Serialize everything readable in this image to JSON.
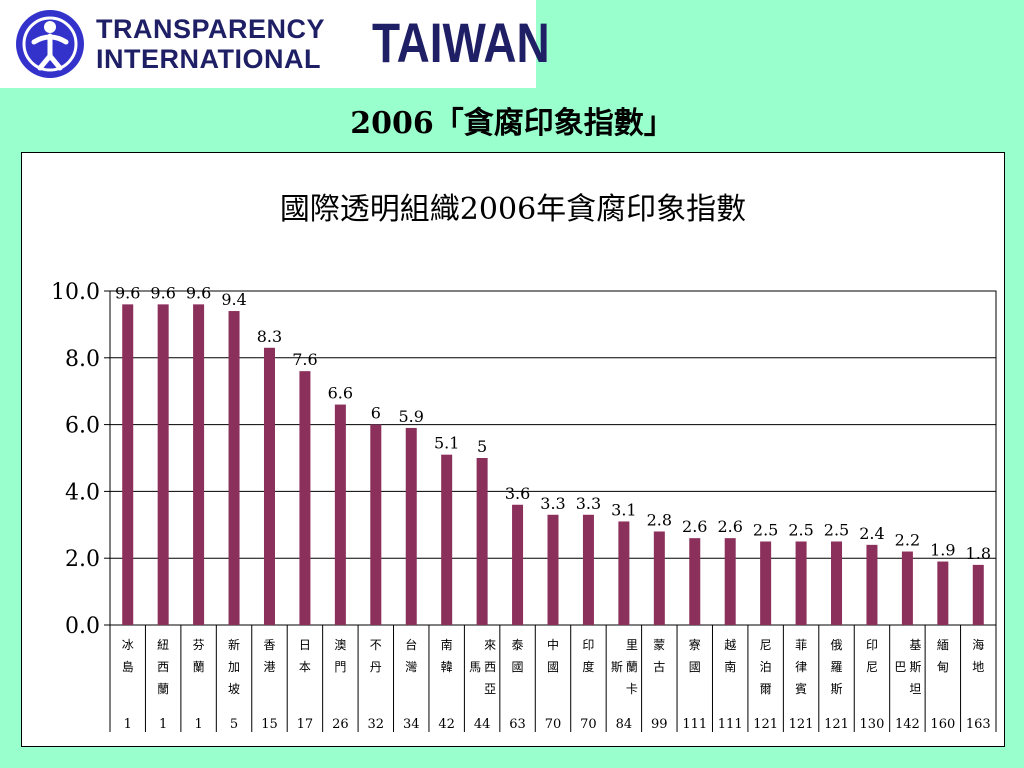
{
  "logo": {
    "line1": "TRANSPARENCY",
    "line2": "INTERNATIONAL",
    "country": "TAIWAN",
    "icon": "globe-figure-icon"
  },
  "slide_title": "2006「貪腐印象指數」",
  "colors": {
    "background": "#99ffcc",
    "bar": "#8b2f5b",
    "logo_text": "#1f1f66",
    "logo_icon": "#3333cc"
  },
  "chart_data": {
    "type": "bar",
    "title": "國際透明組織2006年貪腐印象指數",
    "ylim": [
      0,
      10
    ],
    "yticks": [
      "0.0",
      "2.0",
      "4.0",
      "6.0",
      "8.0",
      "10.0"
    ],
    "grid": true,
    "categories": [
      "冰島",
      "紐西蘭",
      "芬蘭",
      "新加坡",
      "香港",
      "日本",
      "澳門",
      "不丹",
      "台灣",
      "南韓",
      "馬來西亞",
      "泰國",
      "中國",
      "印度",
      "斯里蘭卡",
      "蒙古",
      "寮國",
      "越南",
      "尼泊爾",
      "菲律賓",
      "俄羅斯",
      "印尼",
      "巴基斯坦",
      "緬甸",
      "海地"
    ],
    "values": [
      9.6,
      9.6,
      9.6,
      9.4,
      8.3,
      7.6,
      6.6,
      6,
      5.9,
      5.1,
      5,
      3.6,
      3.3,
      3.3,
      3.1,
      2.8,
      2.6,
      2.6,
      2.5,
      2.5,
      2.5,
      2.4,
      2.2,
      1.9,
      1.8
    ],
    "value_labels": [
      "9.6",
      "9.6",
      "9.6",
      "9.4",
      "8.3",
      "7.6",
      "6.6",
      "6",
      "5.9",
      "5.1",
      "5",
      "3.6",
      "3.3",
      "3.3",
      "3.1",
      "2.8",
      "2.6",
      "2.6",
      "2.5",
      "2.5",
      "2.5",
      "2.4",
      "2.2",
      "1.9",
      "1.8"
    ],
    "ranks": [
      "1",
      "1",
      "1",
      "5",
      "15",
      "17",
      "26",
      "32",
      "34",
      "42",
      "44",
      "63",
      "70",
      "70",
      "84",
      "99",
      "111",
      "111",
      "121",
      "121",
      "121",
      "130",
      "142",
      "160",
      "163"
    ]
  }
}
